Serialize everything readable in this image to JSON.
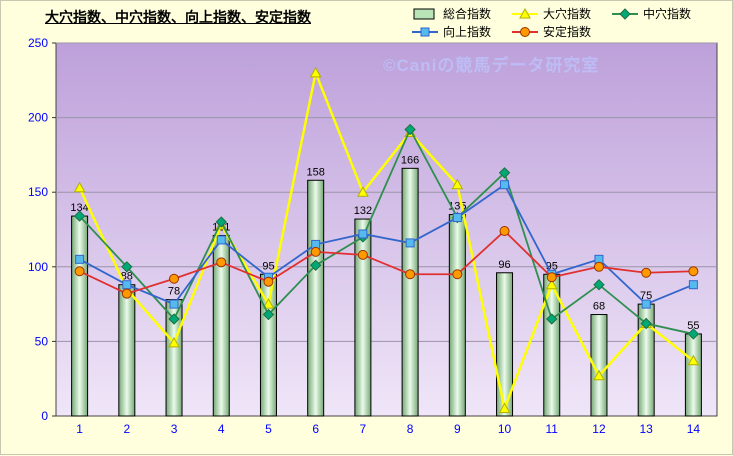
{
  "title": "大穴指数、中穴指数、向上指数、安定指数",
  "watermark": "©Caniの競馬データ研究室",
  "axis": {
    "label_color": "#0000FF",
    "y_labels": [
      "0",
      "50",
      "100",
      "150",
      "200",
      "250"
    ],
    "x_labels": [
      "1",
      "2",
      "3",
      "4",
      "5",
      "6",
      "7",
      "8",
      "9",
      "10",
      "11",
      "12",
      "13",
      "14"
    ]
  },
  "chart_data": {
    "type": "combo-bar-line",
    "title": "大穴指数、中穴指数、向上指数、安定指数",
    "categories": [
      "1",
      "2",
      "3",
      "4",
      "5",
      "6",
      "7",
      "8",
      "9",
      "10",
      "11",
      "12",
      "13",
      "14"
    ],
    "ylim": [
      0,
      250
    ],
    "ytick_step": 50,
    "grid": true,
    "legend_position": "top-right",
    "plot_background": [
      "#BDA0DA",
      "#F0E6F8"
    ],
    "series": [
      {
        "name": "総合指数",
        "type": "bar",
        "color": "#B8E4B8",
        "border": "#000000",
        "show_labels": true,
        "values": [
          134,
          88,
          78,
          121,
          95,
          158,
          132,
          166,
          135,
          96,
          95,
          68,
          75,
          55
        ]
      },
      {
        "name": "大穴指数",
        "type": "line",
        "marker": "triangle",
        "line_color": "#FFFF00",
        "marker_fill": "#FFFF00",
        "marker_edge": "#B0B000",
        "values": [
          153,
          85,
          49,
          128,
          75,
          230,
          150,
          190,
          155,
          5,
          88,
          27,
          62,
          37
        ]
      },
      {
        "name": "中穴指数",
        "type": "line",
        "marker": "diamond",
        "line_color": "#2F8F4F",
        "marker_fill": "#00A878",
        "marker_edge": "#1F6F3F",
        "values": [
          134,
          100,
          65,
          130,
          68,
          101,
          120,
          192,
          133,
          163,
          65,
          88,
          62,
          55
        ]
      },
      {
        "name": "向上指数",
        "type": "line",
        "marker": "square",
        "line_color": "#3366CC",
        "marker_fill": "#55BBEE",
        "marker_edge": "#3366CC",
        "values": [
          105,
          88,
          75,
          118,
          93,
          115,
          122,
          116,
          133,
          155,
          95,
          105,
          75,
          88
        ]
      },
      {
        "name": "安定指数",
        "type": "line",
        "marker": "circle",
        "line_color": "#E03030",
        "marker_fill": "#FF9900",
        "marker_edge": "#993300",
        "values": [
          97,
          82,
          92,
          103,
          90,
          110,
          108,
          95,
          95,
          124,
          93,
          100,
          96,
          97
        ]
      }
    ]
  }
}
